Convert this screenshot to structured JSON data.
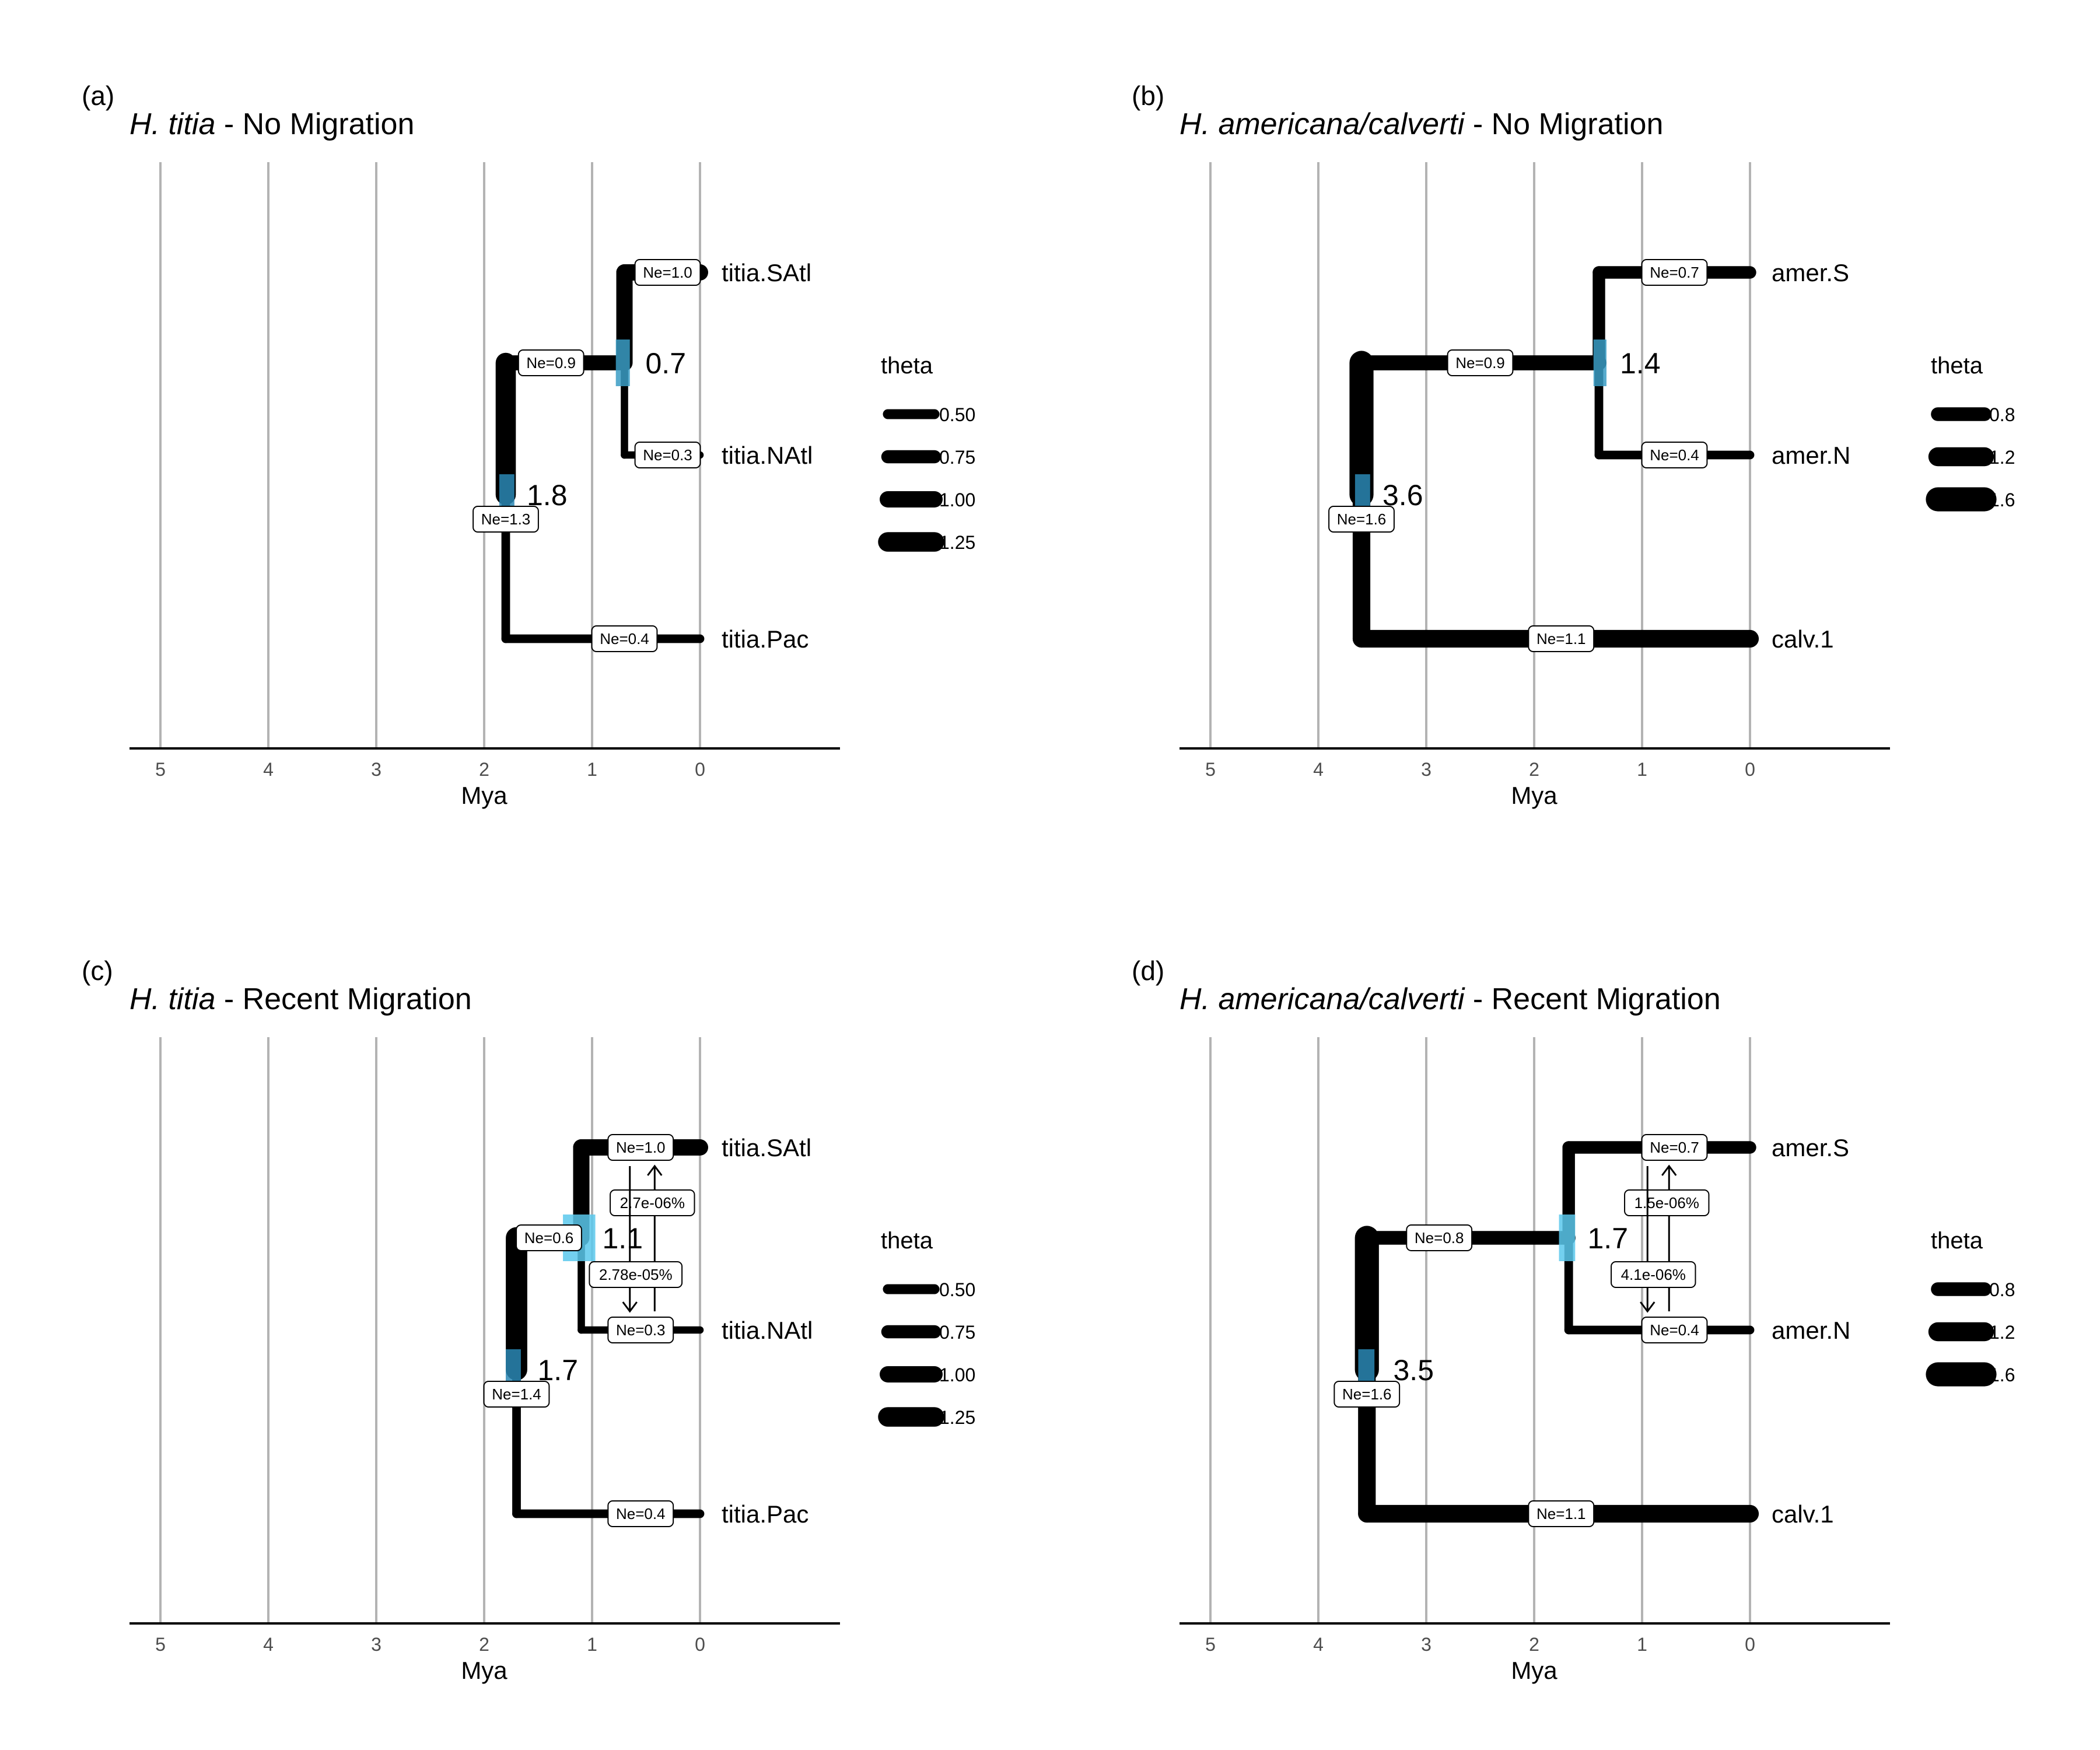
{
  "figure": {
    "x_unit": "Mya"
  },
  "chart_data": [
    {
      "type": "tree",
      "panel_letter": "(a)",
      "title_italic": "H. titia",
      "title_rest": " - No Migration",
      "xlabel": "Mya",
      "xlim": [
        5.3,
        -1.3
      ],
      "xticks": [
        5,
        4,
        3,
        2,
        1,
        0
      ],
      "grid": true,
      "tips": [
        {
          "name": "titia.SAtl",
          "y": 1
        },
        {
          "name": "titia.NAtl",
          "y": 2
        },
        {
          "name": "titia.Pac",
          "y": 3
        }
      ],
      "branches": [
        {
          "id": "root_stem",
          "from_time": 1.8,
          "to_time": 1.8,
          "y_from": 0.5,
          "y_to": 1.85,
          "ne": "Ne=1.3",
          "theta": 1.3,
          "vertical_only": true
        },
        {
          "id": "pac",
          "from_time": 1.75,
          "to_time": 0,
          "y": 3,
          "y_from": 1.85,
          "ne": "Ne=0.4",
          "theta": 0.4
        },
        {
          "id": "anc_atl",
          "from_time": 1.8,
          "to_time": 0.7,
          "y": 0.5,
          "ne": "Ne=0.9",
          "theta": 0.9
        },
        {
          "id": "satl",
          "from_time": 0.7,
          "to_time": 0,
          "y": 0,
          "y_from": 0.5,
          "ne": "Ne=1.0",
          "theta": 1.0
        },
        {
          "id": "natl",
          "from_time": 0.7,
          "to_time": 0,
          "y": 1,
          "y_from": 0.5,
          "ne": "Ne=0.3",
          "theta": 0.3
        }
      ],
      "nodes": [
        {
          "label": "0.7",
          "time": 0.7,
          "y": 0.5,
          "hpd": [
            0.65,
            0.78
          ]
        },
        {
          "label": "1.8",
          "time": 1.8,
          "y": 1.25,
          "hpd": [
            1.72,
            1.86
          ]
        }
      ],
      "migrations": [],
      "legend": {
        "title": "theta",
        "placement": "right",
        "entries": [
          {
            "label": "0.50",
            "theta": 0.5
          },
          {
            "label": "0.75",
            "theta": 0.75
          },
          {
            "label": "1.00",
            "theta": 1.0
          },
          {
            "label": "1.25",
            "theta": 1.25
          }
        ]
      }
    },
    {
      "type": "tree",
      "panel_letter": "(b)",
      "title_italic": "H. americana/calverti",
      "title_rest": " - No Migration",
      "xlabel": "Mya",
      "xlim": [
        5.3,
        -1.3
      ],
      "xticks": [
        5,
        4,
        3,
        2,
        1,
        0
      ],
      "grid": true,
      "tips": [
        {
          "name": "amer.S",
          "y": 1
        },
        {
          "name": "amer.N",
          "y": 2
        },
        {
          "name": "calv.1",
          "y": 3
        }
      ],
      "nodes": [
        {
          "label": "1.4",
          "time": 1.4,
          "y": 0.5,
          "hpd": [
            1.33,
            1.45
          ]
        },
        {
          "label": "3.6",
          "time": 3.6,
          "y": 1.25,
          "hpd": [
            3.52,
            3.66
          ]
        }
      ],
      "branch_labels": [
        "Ne=0.7",
        "Ne=0.9",
        "Ne=0.4",
        "Ne=1.6",
        "Ne=1.1"
      ],
      "migrations": [],
      "legend": {
        "title": "theta",
        "placement": "right",
        "entries": [
          {
            "label": "0.8",
            "theta": 0.8
          },
          {
            "label": "1.2",
            "theta": 1.2
          },
          {
            "label": "1.6",
            "theta": 1.6
          }
        ]
      }
    },
    {
      "type": "tree",
      "panel_letter": "(c)",
      "title_italic": "H. titia",
      "title_rest": " - Recent Migration",
      "xlabel": "Mya",
      "xlim": [
        5.3,
        -1.3
      ],
      "xticks": [
        5,
        4,
        3,
        2,
        1,
        0
      ],
      "grid": true,
      "tips": [
        {
          "name": "titia.SAtl",
          "y": 1
        },
        {
          "name": "titia.NAtl",
          "y": 2
        },
        {
          "name": "titia.Pac",
          "y": 3
        }
      ],
      "nodes": [
        {
          "label": "1.1",
          "time": 1.1,
          "y": 0.5,
          "hpd": [
            0.97,
            1.27
          ]
        },
        {
          "label": "1.7",
          "time": 1.7,
          "y": 1.25,
          "hpd": [
            1.66,
            1.8
          ]
        }
      ],
      "branch_labels": [
        "Ne=1.0",
        "Ne=0.6",
        "Ne=0.3",
        "Ne=1.4",
        "Ne=0.4"
      ],
      "migrations": [
        {
          "label": "2.7e-06%",
          "direction": "up",
          "time": 0.42
        },
        {
          "label": "2.78e-05%",
          "direction": "down",
          "time": 0.65
        }
      ],
      "legend": {
        "title": "theta",
        "placement": "right",
        "entries": [
          {
            "label": "0.50",
            "theta": 0.5
          },
          {
            "label": "0.75",
            "theta": 0.75
          },
          {
            "label": "1.00",
            "theta": 1.0
          },
          {
            "label": "1.25",
            "theta": 1.25
          }
        ]
      }
    },
    {
      "type": "tree",
      "panel_letter": "(d)",
      "title_italic": "H. americana/calverti",
      "title_rest": " - Recent Migration",
      "xlabel": "Mya",
      "xlim": [
        5.3,
        -1.3
      ],
      "xticks": [
        5,
        4,
        3,
        2,
        1,
        0
      ],
      "grid": true,
      "tips": [
        {
          "name": "amer.S",
          "y": 1
        },
        {
          "name": "amer.N",
          "y": 2
        },
        {
          "name": "calv.1",
          "y": 3
        }
      ],
      "nodes": [
        {
          "label": "1.7",
          "time": 1.7,
          "y": 0.5,
          "hpd": [
            1.62,
            1.77
          ]
        },
        {
          "label": "3.5",
          "time": 3.5,
          "y": 1.25,
          "hpd": [
            3.48,
            3.63
          ]
        }
      ],
      "branch_labels": [
        "Ne=0.7",
        "Ne=0.8",
        "Ne=0.4",
        "Ne=1.6",
        "Ne=1.1"
      ],
      "migrations": [
        {
          "label": "1.5e-06%",
          "direction": "up",
          "time": 0.75
        },
        {
          "label": "4.1e-06%",
          "direction": "down",
          "time": 0.95
        }
      ],
      "legend": {
        "title": "theta",
        "placement": "right",
        "entries": [
          {
            "label": "0.8",
            "theta": 0.8
          },
          {
            "label": "1.2",
            "theta": 1.2
          },
          {
            "label": "1.6",
            "theta": 1.6
          }
        ]
      }
    }
  ]
}
